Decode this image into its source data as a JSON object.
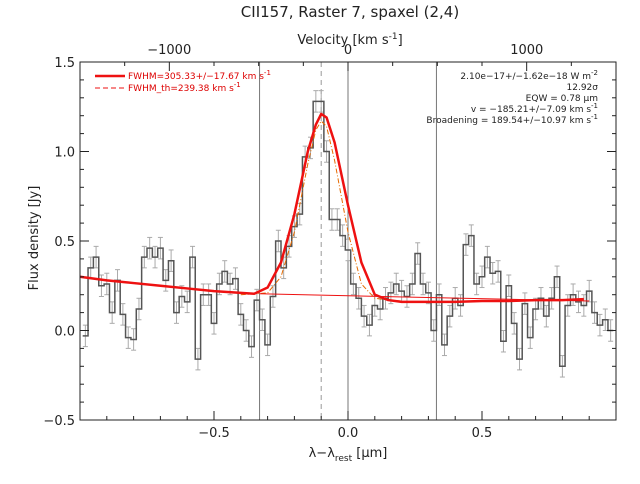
{
  "chart_data": {
    "type": "line",
    "title": "CII157, Raster 7, spaxel (2,4)",
    "xlabel": "λ−λ",
    "xlabel_sub": "rest",
    "xlabel_unit": " [μm]",
    "ylabel": "Flux density [Jy]",
    "top_xlabel": "Velocity [km s",
    "top_xlabel_sup": "-1",
    "top_xlabel_end": "]",
    "xlim": [
      -1.0,
      1.0
    ],
    "ylim": [
      -0.5,
      1.5
    ],
    "x_ticks": [
      {
        "v": -0.5,
        "label": "−0.5"
      },
      {
        "v": 0.0,
        "label": "0.0"
      },
      {
        "v": 0.5,
        "label": "0.5"
      }
    ],
    "y_ticks": [
      {
        "v": -0.5,
        "label": "−0.5"
      },
      {
        "v": 0.0,
        "label": "0.0"
      },
      {
        "v": 0.5,
        "label": "0.5"
      },
      {
        "v": 1.0,
        "label": "1.0"
      },
      {
        "v": 1.5,
        "label": "1.5"
      }
    ],
    "top_ticks": [
      {
        "v": -0.667,
        "label": "−1000"
      },
      {
        "v": 0.0,
        "label": "0"
      },
      {
        "v": 0.667,
        "label": "1000"
      }
    ],
    "vlines": [
      -0.33,
      0.0,
      0.33
    ],
    "center_line": -0.1,
    "legend": [
      "FWHM=305.33+/−17.67 km s",
      "FWHM_th=239.38 km s"
    ],
    "legend_sup": "-1",
    "annotations": [
      "2.10e−17+/−1.62e−18 W m",
      "12.92σ",
      "EQW = 0.78 μm",
      "v = −185.21+/−7.09 km s",
      "Broadening = 189.54+/−10.97 km s"
    ],
    "annotation_sups": [
      "-2",
      "",
      "",
      "-1",
      "-1"
    ],
    "spectrum": {
      "x": [
        -0.98,
        -0.96,
        -0.94,
        -0.92,
        -0.9,
        -0.88,
        -0.86,
        -0.84,
        -0.82,
        -0.8,
        -0.78,
        -0.76,
        -0.74,
        -0.72,
        -0.7,
        -0.68,
        -0.66,
        -0.64,
        -0.62,
        -0.6,
        -0.58,
        -0.56,
        -0.54,
        -0.52,
        -0.5,
        -0.48,
        -0.46,
        -0.44,
        -0.42,
        -0.4,
        -0.38,
        -0.36,
        -0.34,
        -0.32,
        -0.3,
        -0.28,
        -0.26,
        -0.24,
        -0.22,
        -0.2,
        -0.18,
        -0.16,
        -0.14,
        -0.12,
        -0.1,
        -0.08,
        -0.06,
        -0.04,
        -0.02,
        0.0,
        0.02,
        0.04,
        0.06,
        0.08,
        0.1,
        0.12,
        0.14,
        0.16,
        0.18,
        0.2,
        0.22,
        0.24,
        0.26,
        0.28,
        0.3,
        0.32,
        0.34,
        0.36,
        0.38,
        0.4,
        0.42,
        0.44,
        0.46,
        0.48,
        0.5,
        0.52,
        0.54,
        0.56,
        0.58,
        0.6,
        0.62,
        0.64,
        0.66,
        0.68,
        0.7,
        0.72,
        0.74,
        0.76,
        0.78,
        0.8,
        0.82,
        0.84,
        0.86,
        0.88,
        0.9,
        0.92,
        0.94,
        0.96,
        0.98
      ],
      "y": [
        -0.03,
        0.35,
        0.41,
        0.25,
        0.26,
        0.1,
        0.28,
        0.09,
        -0.04,
        -0.05,
        0.12,
        0.41,
        0.46,
        0.41,
        0.46,
        0.28,
        0.39,
        0.1,
        0.19,
        0.16,
        0.41,
        -0.16,
        0.2,
        0.2,
        0.04,
        0.26,
        0.33,
        0.26,
        0.29,
        0.09,
        0.0,
        -0.09,
        0.17,
        0.06,
        -0.08,
        0.19,
        0.5,
        0.35,
        0.47,
        0.58,
        0.65,
        0.97,
        1.02,
        1.28,
        1.28,
        1.0,
        0.62,
        0.62,
        0.53,
        0.45,
        0.26,
        0.18,
        0.08,
        0.03,
        0.14,
        0.12,
        0.18,
        0.21,
        0.26,
        0.22,
        0.19,
        0.26,
        0.43,
        0.26,
        0.21,
        0.0,
        0.2,
        -0.08,
        0.08,
        0.18,
        0.14,
        0.48,
        0.53,
        0.26,
        0.3,
        0.41,
        0.32,
        0.33,
        -0.06,
        0.25,
        0.04,
        -0.16,
        0.15,
        -0.04,
        0.12,
        0.18,
        0.08,
        0.18,
        0.3,
        -0.2,
        0.14,
        0.2,
        0.16,
        0.14,
        0.22,
        0.1,
        0.03,
        0.06,
        0.0
      ],
      "err": 0.06
    },
    "fit_line": {
      "x": [
        -1.0,
        -0.9,
        -0.8,
        -0.7,
        -0.6,
        -0.5,
        -0.4,
        -0.35,
        -0.3,
        -0.25,
        -0.2,
        -0.15,
        -0.12,
        -0.1,
        -0.08,
        -0.05,
        0.0,
        0.05,
        0.1,
        0.15,
        0.2,
        0.3,
        0.4,
        0.5,
        0.6,
        0.7,
        0.8,
        0.88
      ],
      "y": [
        0.3,
        0.28,
        0.265,
        0.25,
        0.235,
        0.22,
        0.21,
        0.205,
        0.24,
        0.38,
        0.65,
        1.0,
        1.15,
        1.21,
        1.19,
        1.05,
        0.7,
        0.38,
        0.2,
        0.17,
        0.16,
        0.16,
        0.16,
        0.165,
        0.165,
        0.17,
        0.17,
        0.175
      ]
    },
    "continuum": {
      "x": [
        -0.33,
        0.9
      ],
      "y": [
        0.205,
        0.165
      ]
    },
    "theory_line": {
      "x": [
        -0.4,
        -0.3,
        -0.25,
        -0.2,
        -0.15,
        -0.12,
        -0.1,
        -0.08,
        -0.05,
        0.0,
        0.05,
        0.1,
        0.15,
        0.2
      ],
      "y": [
        0.2,
        0.21,
        0.3,
        0.55,
        0.93,
        1.12,
        1.17,
        1.14,
        0.95,
        0.55,
        0.26,
        0.18,
        0.17,
        0.165
      ]
    },
    "colors": {
      "fit": "#e11",
      "data": "#555",
      "err": "#aaa",
      "vline": "#777",
      "theory": "#e66a00"
    }
  }
}
